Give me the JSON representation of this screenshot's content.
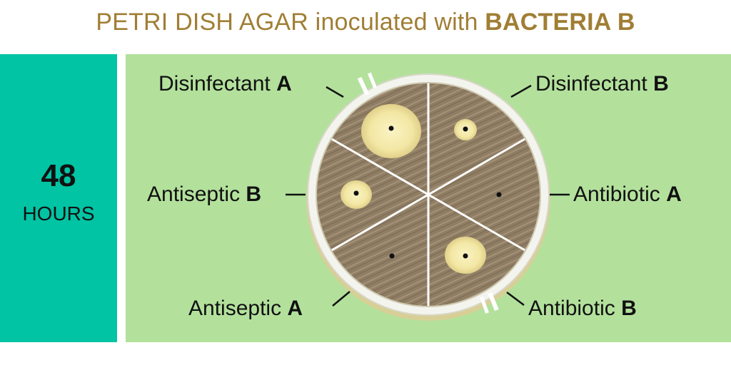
{
  "title": {
    "prefix": "PETRI DISH AGAR inoculated with ",
    "emphasis": "BACTERIA B",
    "color": "#a07e34"
  },
  "time": {
    "number": "48",
    "unit": "HOURS"
  },
  "colors": {
    "left_panel": "#00c4a4",
    "main_panel": "#b3e19c",
    "agar": "#8f7d64",
    "clear_zone": "#f5ecb0",
    "dish_rim": "#f4f4ef"
  },
  "segments": [
    {
      "name": "Disinfectant",
      "letter": "A",
      "clear_zone": "large"
    },
    {
      "name": "Disinfectant",
      "letter": "B",
      "clear_zone": "small"
    },
    {
      "name": "Antibiotic",
      "letter": "A",
      "clear_zone": "none"
    },
    {
      "name": "Antibiotic",
      "letter": "B",
      "clear_zone": "medium"
    },
    {
      "name": "Antiseptic",
      "letter": "A",
      "clear_zone": "none"
    },
    {
      "name": "Antiseptic",
      "letter": "B",
      "clear_zone": "small"
    }
  ]
}
